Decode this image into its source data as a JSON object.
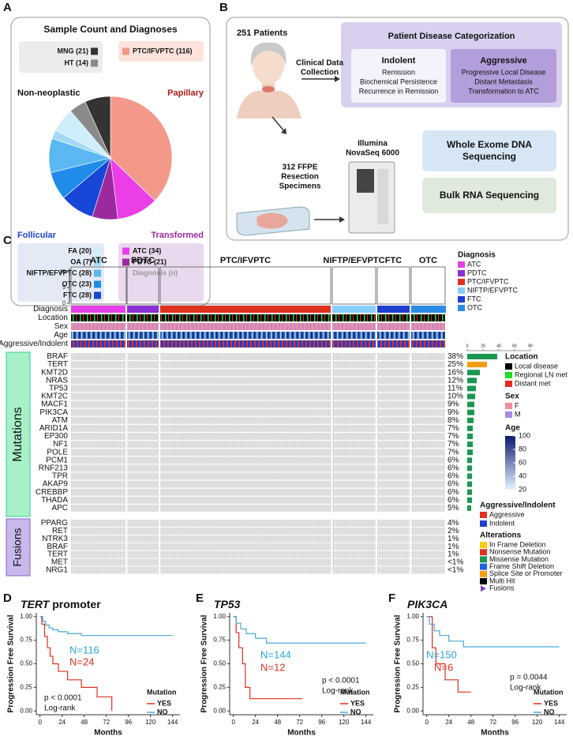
{
  "panel_labels": [
    "A",
    "B",
    "C",
    "D",
    "E",
    "F"
  ],
  "panel_a": {
    "type": "pie",
    "title": "Sample Count and Diagnoses",
    "categories": [
      "PTC/IFVPTC",
      "ATC",
      "PDTC",
      "FTC",
      "OTC",
      "NIFTP/EFVPTC",
      "OA",
      "FA",
      "HT",
      "MNG"
    ],
    "values": [
      116,
      34,
      21,
      28,
      23,
      28,
      7,
      20,
      14,
      21
    ],
    "colors": [
      "#f4998a",
      "#ec3ee8",
      "#9c2a9e",
      "#1747d6",
      "#1f8cea",
      "#5cb8f2",
      "#a2d9f6",
      "#cdeefa",
      "#8a8a8a",
      "#333333"
    ],
    "legend_labels": [
      "PTC/IFVPTC (116)",
      "ATC (34)",
      "PDTC (21)",
      "FTC (28)",
      "OTC (23)",
      "NIFTP/EFVPTC (28)",
      "OA (7)",
      "FA (20)",
      "HT (14)",
      "MNG (21)"
    ],
    "groups": {
      "non_neoplastic": "Non-neoplastic",
      "papillary": "Papillary",
      "follicular": "Follicular",
      "transformed": "Transformed"
    },
    "legend_note": "Diagnosis (n)"
  },
  "panel_b": {
    "patients": "251 Patients",
    "clinical": [
      "Clinical Data",
      "Collection"
    ],
    "categorization": "Patient Disease Categorization",
    "indolent": {
      "title": "Indolent",
      "items": [
        "Remission",
        "Biochemical Persistence",
        "Recurrence in Remission"
      ]
    },
    "aggressive": {
      "title": "Aggressive",
      "items": [
        "Progressive Local Disease",
        "Distant Metastasis",
        "Transformation to ATC"
      ]
    },
    "specimens": [
      "312 FFPE",
      "Resection",
      "Specimens"
    ],
    "sequencer": [
      "Illumina",
      "NovaSeq 6000"
    ],
    "wes": [
      "Whole Exome DNA",
      "Sequencing"
    ],
    "rna": "Bulk RNA Sequencing"
  },
  "panel_c": {
    "groups": [
      "ATC",
      "PDTC",
      "PTC/IFVPTC",
      "NIFTP/EFVPTC",
      "FTC",
      "OTC"
    ],
    "count_ylim": [
      0,
      11
    ],
    "count_ticks": [
      0,
      5,
      10
    ],
    "track_labels": [
      "Diagnosis",
      "Location",
      "Sex",
      "Age",
      "Aggressive/Indolent"
    ],
    "mutations_label": "Mutations",
    "genes": [
      "BRAF",
      "TERT",
      "KMT2D",
      "NRAS",
      "TP53",
      "KMT2C",
      "MACF1",
      "PIK3CA",
      "ATM",
      "ARID1A",
      "EP300",
      "NF1",
      "POLE",
      "PCM1",
      "RNF213",
      "TPR",
      "AKAP9",
      "CREBBP",
      "THADA",
      "APC"
    ],
    "pct": [
      38,
      25,
      16,
      12,
      11,
      10,
      9,
      9,
      8,
      7,
      7,
      7,
      7,
      6,
      6,
      6,
      6,
      6,
      6,
      5
    ],
    "pct_labels": [
      "38%",
      "25%",
      "16%",
      "12%",
      "11%",
      "10%",
      "9%",
      "9%",
      "8%",
      "7%",
      "7%",
      "7%",
      "7%",
      "6%",
      "6%",
      "6%",
      "6%",
      "6%",
      "6%",
      "5%"
    ],
    "pct_colors": [
      "#1a9850",
      "#f39c12",
      "#1a9850",
      "#1a9850",
      "#1a9850",
      "#1a9850",
      "#1a9850",
      "#1a9850",
      "#1a9850",
      "#1a9850",
      "#1a9850",
      "#1a9850",
      "#1a9850",
      "#1a9850",
      "#1a9850",
      "#1a9850",
      "#1a9850",
      "#1a9850",
      "#1a9850",
      "#1a9850"
    ],
    "pct_xlim": [
      0,
      80
    ],
    "pct_ticks": [
      0,
      20,
      40,
      60,
      80
    ],
    "fusions_label": "Fusions",
    "fusion_genes": [
      "PPARG",
      "RET",
      "NTRK3",
      "BRAF",
      "TERT",
      "MET",
      "NRG1"
    ],
    "fusion_pct_labels": [
      "4%",
      "2%",
      "1%",
      "1%",
      "1%",
      "<1%",
      "<1%"
    ],
    "legends": {
      "diagnosis": {
        "title": "Diagnosis",
        "items": [
          "ATC",
          "PDTC",
          "PTC/IFVPTC",
          "NIFTP/EFVPTC",
          "FTC",
          "OTC"
        ],
        "colors": [
          "#e63fe6",
          "#8b2fd6",
          "#e0301e",
          "#87cefa",
          "#1f3fd0",
          "#2b8ce6"
        ]
      },
      "location": {
        "title": "Location",
        "items": [
          "Local disease",
          "Regional LN met",
          "Distant met"
        ],
        "colors": [
          "#000000",
          "#22dd22",
          "#e0301e"
        ]
      },
      "sex": {
        "title": "Sex",
        "items": [
          "F",
          "M"
        ],
        "colors": [
          "#f08ca0",
          "#a68ae6"
        ]
      },
      "age": {
        "title": "Age",
        "range": [
          20,
          100
        ],
        "ticks": [
          100,
          80,
          60,
          40,
          20
        ]
      },
      "aggressive": {
        "title": "Aggressive/Indolent",
        "items": [
          "Aggressive",
          "Indolent"
        ],
        "colors": [
          "#e0301e",
          "#1f3fd0"
        ]
      },
      "alterations": {
        "title": "Alterations",
        "items": [
          "In Frame Deletion",
          "Nonsense Mutation",
          "Missense Mutation",
          "Frame Shift Deletion",
          "Splice Site or Promoter",
          "Multi Hit",
          "Fusions"
        ],
        "colors": [
          "#f5d000",
          "#e0301e",
          "#1a9850",
          "#1f5fe0",
          "#f39c12",
          "#000000",
          "#7b3fc4"
        ]
      }
    }
  },
  "km": [
    {
      "title_italic": "TERT",
      "title_rest": " promoter",
      "ylabel": "Progression Free Survival",
      "xlabel": "Months",
      "xlim": [
        -4,
        152
      ],
      "ylim": [
        -0.04,
        1.04
      ],
      "xticks": [
        0,
        24,
        48,
        72,
        96,
        120,
        144
      ],
      "yticks": [
        {
          "value": 0,
          "label": "0.00"
        },
        {
          "value": 0.25,
          "label": "0.25"
        },
        {
          "value": 0.5,
          "label": "0.50"
        },
        {
          "value": 0.75,
          "label": "0.75"
        },
        {
          "value": 1,
          "label": "1.00"
        }
      ],
      "n_labels": [
        {
          "text": "N=116",
          "color": "#2aa7dc"
        },
        {
          "text": "N=24",
          "color": "#e0301e"
        }
      ],
      "p": "p < 0.0001",
      "test": "Log-rank",
      "legend_title": "Mutation",
      "series": [
        {
          "name": "YES",
          "color": "#e0301e",
          "x": [
            0,
            2,
            2,
            5,
            5,
            8,
            8,
            11,
            11,
            14,
            14,
            20,
            20,
            30,
            30,
            45,
            45,
            62,
            62,
            78,
            78
          ],
          "values": [
            1,
            1,
            0.92,
            0.92,
            0.79,
            0.79,
            0.67,
            0.67,
            0.58,
            0.58,
            0.5,
            0.5,
            0.42,
            0.42,
            0.33,
            0.33,
            0.25,
            0.25,
            0.15,
            0.15,
            0
          ]
        },
        {
          "name": "NO",
          "color": "#4aa8d8",
          "x": [
            0,
            3,
            3,
            6,
            6,
            10,
            10,
            14,
            14,
            20,
            20,
            30,
            30,
            45,
            45,
            144
          ],
          "values": [
            1,
            1,
            0.95,
            0.95,
            0.91,
            0.91,
            0.88,
            0.88,
            0.86,
            0.86,
            0.84,
            0.84,
            0.82,
            0.82,
            0.8,
            0.8
          ]
        }
      ]
    },
    {
      "title_italic": "TP53",
      "ylabel": "Progression Free Survival",
      "xlabel": "Months",
      "xlim": [
        -4,
        152
      ],
      "ylim": [
        -0.04,
        1.04
      ],
      "xticks": [
        0,
        24,
        48,
        72,
        96,
        120,
        144
      ],
      "yticks": [
        {
          "value": 0,
          "label": "0.00"
        },
        {
          "value": 0.25,
          "label": "0.25"
        },
        {
          "value": 0.5,
          "label": "0.50"
        },
        {
          "value": 0.75,
          "label": "0.75"
        },
        {
          "value": 1,
          "label": "1.00"
        }
      ],
      "n_labels": [
        {
          "text": "N=144",
          "color": "#2aa7dc"
        },
        {
          "text": "N=12",
          "color": "#e0301e"
        }
      ],
      "p": "p < 0.0001",
      "test": "Log-rank",
      "legend_title": "Mutation",
      "series": [
        {
          "name": "YES",
          "color": "#e0301e",
          "x": [
            0,
            3,
            3,
            6,
            6,
            10,
            10,
            13,
            13,
            18,
            18,
            75
          ],
          "values": [
            1,
            1,
            0.83,
            0.83,
            0.67,
            0.67,
            0.5,
            0.5,
            0.25,
            0.25,
            0.13,
            0.13
          ]
        },
        {
          "name": "NO",
          "color": "#4aa8d8",
          "x": [
            0,
            3,
            3,
            8,
            8,
            14,
            14,
            24,
            24,
            36,
            36,
            144
          ],
          "values": [
            1,
            1,
            0.93,
            0.93,
            0.87,
            0.87,
            0.82,
            0.82,
            0.77,
            0.77,
            0.72,
            0.72
          ]
        }
      ]
    },
    {
      "title_italic": "PIK3CA",
      "ylabel": "Progression Free Survival",
      "xlabel": "Months",
      "xlim": [
        -4,
        152
      ],
      "ylim": [
        -0.04,
        1.04
      ],
      "xticks": [
        0,
        24,
        48,
        72,
        96,
        120,
        144
      ],
      "yticks": [
        {
          "value": 0,
          "label": "0.00"
        },
        {
          "value": 0.25,
          "label": "0.25"
        },
        {
          "value": 0.5,
          "label": "0.50"
        },
        {
          "value": 0.75,
          "label": "0.75"
        },
        {
          "value": 1,
          "label": "1.00"
        }
      ],
      "n_labels": [
        {
          "text": "N=150",
          "color": "#2aa7dc"
        },
        {
          "text": "N=6",
          "color": "#e0301e"
        }
      ],
      "p": "p = 0.0044",
      "test": "Log-rank",
      "legend_title": "Mutation",
      "series": [
        {
          "name": "YES",
          "color": "#e0301e",
          "x": [
            0,
            6,
            6,
            10,
            10,
            20,
            20,
            34,
            34,
            48
          ],
          "values": [
            1,
            1,
            0.67,
            0.67,
            0.5,
            0.5,
            0.33,
            0.33,
            0.2,
            0.2
          ]
        },
        {
          "name": "NO",
          "color": "#4aa8d8",
          "x": [
            0,
            3,
            3,
            8,
            8,
            14,
            14,
            24,
            24,
            40,
            40,
            144
          ],
          "values": [
            1,
            1,
            0.92,
            0.92,
            0.85,
            0.85,
            0.8,
            0.8,
            0.74,
            0.74,
            0.68,
            0.68
          ]
        }
      ]
    }
  ]
}
